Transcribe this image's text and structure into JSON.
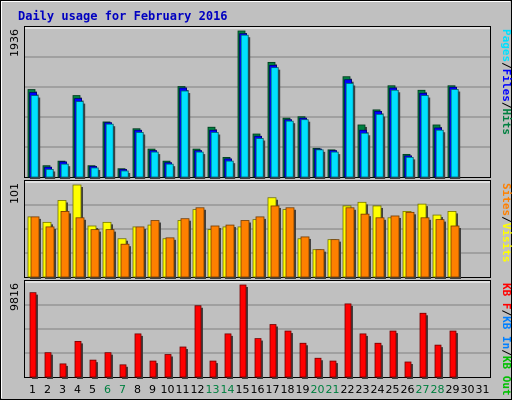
{
  "title": "Daily usage for February 2016",
  "colors": {
    "background": "#C0C0C0",
    "frame_outer": "#D8D8D8",
    "title": "#0000C0",
    "weekday": "#000000",
    "weekend": "#008040",
    "hits": "#008040",
    "files": "#0000FF",
    "pages": "#00E0FF",
    "visits": "#FFFF00",
    "sites": "#FF8000",
    "kbin": "#0080FF",
    "kbout": "#00C000",
    "kbf": "#FF0000",
    "gridline": "#808080"
  },
  "chart_data": [
    {
      "type": "bar",
      "name": "hits-files-pages",
      "categories": [
        "1",
        "2",
        "3",
        "4",
        "5",
        "6",
        "7",
        "8",
        "9",
        "10",
        "11",
        "12",
        "13",
        "14",
        "15",
        "16",
        "17",
        "18",
        "19",
        "20",
        "21",
        "22",
        "23",
        "24",
        "25",
        "26",
        "27",
        "28",
        "29",
        "30",
        "31"
      ],
      "scale_label": "1936",
      "ylim": [
        0,
        1936
      ],
      "series": [
        {
          "name": "Hits",
          "values": [
            1160,
            150,
            210,
            1080,
            150,
            730,
            110,
            640,
            370,
            210,
            1200,
            370,
            660,
            260,
            1936,
            570,
            1520,
            780,
            800,
            380,
            360,
            1330,
            690,
            890,
            1210,
            300,
            1150,
            690,
            1210,
            0,
            0
          ]
        },
        {
          "name": "Files",
          "values": [
            1120,
            130,
            200,
            1040,
            140,
            720,
            100,
            620,
            350,
            190,
            1180,
            350,
            620,
            240,
            1900,
            540,
            1480,
            760,
            780,
            370,
            350,
            1290,
            620,
            870,
            1180,
            280,
            1110,
            650,
            1190,
            0,
            0
          ]
        },
        {
          "name": "Pages",
          "values": [
            1080,
            100,
            170,
            1000,
            120,
            700,
            80,
            590,
            330,
            170,
            1140,
            330,
            590,
            210,
            1880,
            510,
            1450,
            740,
            760,
            360,
            330,
            1240,
            580,
            830,
            1150,
            260,
            1080,
            620,
            1160,
            0,
            0
          ]
        }
      ]
    },
    {
      "type": "bar",
      "name": "visits-sites",
      "categories": [
        "1",
        "2",
        "3",
        "4",
        "5",
        "6",
        "7",
        "8",
        "9",
        "10",
        "11",
        "12",
        "13",
        "14",
        "15",
        "16",
        "17",
        "18",
        "19",
        "20",
        "21",
        "22",
        "23",
        "24",
        "25",
        "26",
        "27",
        "28",
        "29",
        "30",
        "31"
      ],
      "scale_label": "101",
      "ylim": [
        0,
        101
      ],
      "series": [
        {
          "name": "Visits",
          "values": [
            66,
            60,
            84,
            101,
            56,
            60,
            42,
            55,
            57,
            42,
            62,
            74,
            52,
            55,
            55,
            63,
            87,
            74,
            42,
            30,
            41,
            78,
            82,
            78,
            65,
            72,
            80,
            68,
            72,
            0,
            0
          ]
        },
        {
          "name": "Sites",
          "values": [
            66,
            55,
            72,
            65,
            52,
            52,
            36,
            55,
            62,
            43,
            64,
            76,
            56,
            57,
            62,
            66,
            78,
            76,
            44,
            30,
            41,
            76,
            69,
            65,
            67,
            71,
            65,
            63,
            56,
            0,
            0
          ]
        }
      ]
    },
    {
      "type": "bar",
      "name": "kb",
      "categories": [
        "1",
        "2",
        "3",
        "4",
        "5",
        "6",
        "7",
        "8",
        "9",
        "10",
        "11",
        "12",
        "13",
        "14",
        "15",
        "16",
        "17",
        "18",
        "19",
        "20",
        "21",
        "22",
        "23",
        "24",
        "25",
        "26",
        "27",
        "28",
        "29",
        "30",
        "31"
      ],
      "scale_label": "9816",
      "ylim": [
        0,
        9816
      ],
      "series": [
        {
          "name": "KB F",
          "values": [
            9000,
            2600,
            1400,
            3800,
            1800,
            2600,
            1300,
            4600,
            1700,
            2400,
            3200,
            7600,
            1700,
            4600,
            9816,
            4100,
            5600,
            4900,
            3600,
            2000,
            1700,
            7800,
            4600,
            3600,
            4900,
            1600,
            6800,
            3400,
            4900,
            0,
            0
          ]
        }
      ]
    }
  ],
  "legend_right_panel1": [
    {
      "text": "Pages",
      "color": "#00E0FF"
    },
    {
      "text": "/",
      "color": "#000000"
    },
    {
      "text": "Files",
      "color": "#0000FF"
    },
    {
      "text": "/",
      "color": "#000000"
    },
    {
      "text": "Hits",
      "color": "#008040"
    }
  ],
  "legend_right_panel2": [
    {
      "text": "Sites",
      "color": "#FF8000"
    },
    {
      "text": "/",
      "color": "#000000"
    },
    {
      "text": "Visits",
      "color": "#FFFF00"
    }
  ],
  "legend_right_panel3": [
    {
      "text": "KB F",
      "color": "#FF0000"
    },
    {
      "text": "/",
      "color": "#000000"
    },
    {
      "text": "KB In",
      "color": "#0080FF"
    },
    {
      "text": "/",
      "color": "#000000"
    },
    {
      "text": "KB Out",
      "color": "#00C000"
    }
  ],
  "weekend_days": [
    "6",
    "7",
    "13",
    "14",
    "20",
    "21",
    "27",
    "28"
  ]
}
